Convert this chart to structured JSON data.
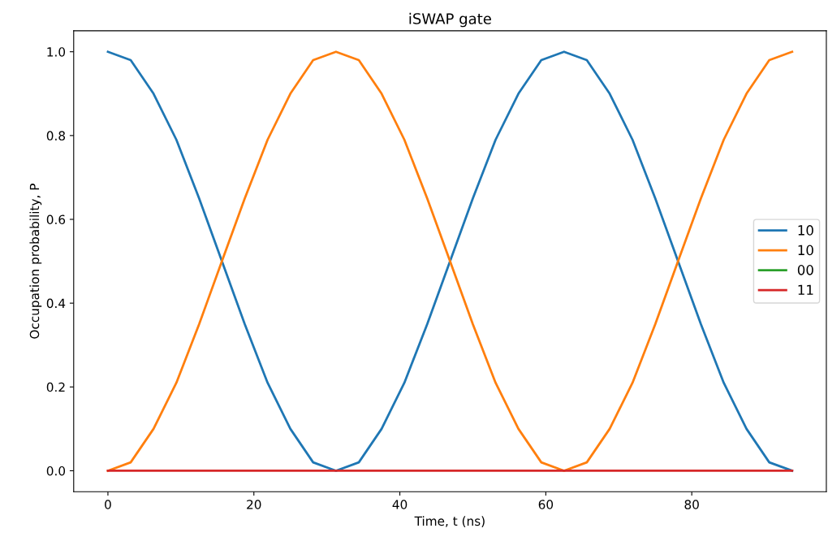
{
  "chart_data": {
    "type": "line",
    "title": "iSWAP gate",
    "xlabel": "Time, t (ns)",
    "ylabel": "Occupation probability, P",
    "x": [
      0,
      3.12,
      6.25,
      9.38,
      12.5,
      15.62,
      18.75,
      21.88,
      25,
      28.12,
      31.25,
      34.38,
      37.5,
      40.62,
      43.75,
      46.88,
      50,
      53.12,
      56.25,
      59.38,
      62.5,
      65.62,
      68.75,
      71.88,
      75,
      78.12,
      81.25,
      84.38,
      87.5,
      90.62,
      93.75
    ],
    "series": [
      {
        "name": "10",
        "color": "#1f77b4",
        "values": [
          1,
          0.98,
          0.9,
          0.79,
          0.65,
          0.5,
          0.35,
          0.21,
          0.1,
          0.02,
          0,
          0.02,
          0.1,
          0.21,
          0.35,
          0.5,
          0.65,
          0.79,
          0.9,
          0.98,
          1,
          0.98,
          0.9,
          0.79,
          0.65,
          0.5,
          0.35,
          0.21,
          0.1,
          0.02,
          0
        ]
      },
      {
        "name": "10",
        "color": "#ff7f0e",
        "values": [
          0,
          0.02,
          0.1,
          0.21,
          0.35,
          0.5,
          0.65,
          0.79,
          0.9,
          0.98,
          1,
          0.98,
          0.9,
          0.79,
          0.65,
          0.5,
          0.35,
          0.21,
          0.1,
          0.02,
          0,
          0.02,
          0.1,
          0.21,
          0.35,
          0.5,
          0.65,
          0.79,
          0.9,
          0.98,
          1
        ]
      },
      {
        "name": "00",
        "color": "#2ca02c",
        "values": [
          null,
          null,
          null,
          null,
          null,
          null,
          null,
          null,
          null,
          null,
          null,
          null,
          null,
          null,
          null,
          null,
          null,
          null,
          null,
          null,
          null,
          null,
          null,
          null,
          null,
          null,
          null,
          null,
          null,
          null,
          null
        ]
      },
      {
        "name": "11",
        "color": "#d62728",
        "values": [
          0,
          0,
          0,
          0,
          0,
          0,
          0,
          0,
          0,
          0,
          0,
          0,
          0,
          0,
          0,
          0,
          0,
          0,
          0,
          0,
          0,
          0,
          0,
          0,
          0,
          0,
          0,
          0,
          0,
          0,
          0
        ]
      }
    ],
    "xlim": [
      -4.69,
      98.44
    ],
    "ylim": [
      -0.05,
      1.05
    ],
    "xticks": [
      0,
      20,
      40,
      60,
      80
    ],
    "yticks": [
      {
        "value": 0,
        "label": "0.0"
      },
      {
        "value": 0.2,
        "label": "0.2"
      },
      {
        "value": 0.4,
        "label": "0.4"
      },
      {
        "value": 0.6,
        "label": "0.6"
      },
      {
        "value": 0.8,
        "label": "0.8"
      },
      {
        "value": 1,
        "label": "1.0"
      }
    ],
    "legend": "center right",
    "grid": false,
    "marker": "none",
    "line_style": "solid"
  }
}
